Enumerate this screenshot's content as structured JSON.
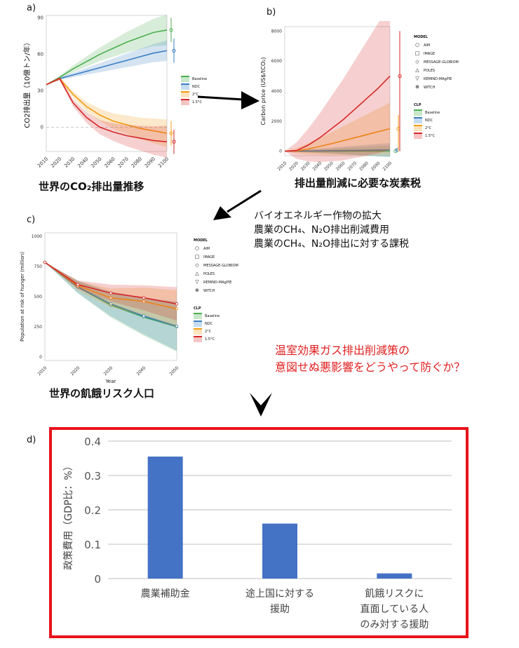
{
  "panel_a": {
    "letter": "a)",
    "caption": "世界のCO₂排出量推移",
    "chart_data": {
      "type": "line",
      "ylabel": "CO2排出量（10億トン/年）",
      "xlabel": "",
      "x": [
        2010,
        2020,
        2030,
        2040,
        2050,
        2060,
        2070,
        2080,
        2090,
        2100
      ],
      "y_ticks": [
        0,
        30,
        60,
        90
      ],
      "ylim": [
        -20,
        92
      ],
      "series": [
        {
          "name": "Baseline",
          "color": "#4caf50",
          "values": [
            35,
            41,
            48,
            54,
            60,
            65,
            70,
            74,
            78,
            80
          ]
        },
        {
          "name": "NDC",
          "color": "#3a7ec2",
          "values": [
            35,
            40,
            43,
            46,
            49,
            52,
            55,
            58,
            61,
            63
          ]
        },
        {
          "name": "2°C",
          "color": "#f39c12",
          "values": [
            35,
            40,
            27,
            17,
            10,
            5,
            2,
            -1,
            -3,
            -5
          ]
        },
        {
          "name": "1.5°C",
          "color": "#d62728",
          "values": [
            35,
            40,
            20,
            8,
            0,
            -4,
            -7,
            -9,
            -11,
            -12
          ]
        }
      ],
      "legend": [
        "Baseline",
        "NDC",
        "2°C",
        "1.5°C"
      ],
      "legend_position": "right"
    }
  },
  "panel_b": {
    "letter": "b)",
    "caption": "排出量削減に必要な炭素税",
    "chart_data": {
      "type": "line",
      "ylabel": "Carbon price (US$/tCO₂)",
      "x": [
        2010,
        2020,
        2030,
        2040,
        2050,
        2060,
        2070,
        2080,
        2090,
        2100
      ],
      "y_ticks": [
        0,
        2000,
        4000,
        6000,
        8000
      ],
      "ylim": [
        -300,
        8300
      ],
      "series": [
        {
          "name": "Baseline",
          "color": "#4caf50",
          "values": [
            0,
            0,
            0,
            0,
            0,
            0,
            0,
            0,
            0,
            0
          ]
        },
        {
          "name": "NDC",
          "color": "#3a7ec2",
          "values": [
            0,
            5,
            15,
            25,
            35,
            45,
            55,
            65,
            75,
            85
          ]
        },
        {
          "name": "2°C",
          "color": "#f39c12",
          "values": [
            0,
            20,
            150,
            320,
            500,
            700,
            900,
            1100,
            1300,
            1500
          ]
        },
        {
          "name": "1.5°C",
          "color": "#d62728",
          "values": [
            0,
            40,
            400,
            900,
            1500,
            2100,
            2800,
            3500,
            4200,
            5000
          ]
        }
      ],
      "legend_model_header": "MODEL",
      "models": [
        "AIM",
        "IMAGE",
        "MESSAGE-GLOBIOM",
        "POLES",
        "REMIND-MAgPIE",
        "WITCH"
      ],
      "model_icons": [
        "○",
        "□",
        "◇",
        "△",
        "▽",
        "⊕"
      ],
      "legend_clp_header": "CLP",
      "clp": [
        "Baseline",
        "NDC",
        "2°C",
        "1.5°C"
      ]
    }
  },
  "panel_c": {
    "letter": "c)",
    "chart_data": {
      "type": "line",
      "xlabel": "Year",
      "ylabel": "Population at risk of hunger (million)",
      "x": [
        2010,
        2020,
        2030,
        2040,
        2050
      ],
      "y_ticks": [
        0,
        250,
        500,
        750,
        1000
      ],
      "ylim": [
        -30,
        1030
      ],
      "series": [
        {
          "name": "Baseline",
          "color": "#4caf50",
          "values": [
            785,
            580,
            430,
            330,
            250
          ]
        },
        {
          "name": "NDC",
          "color": "#3a7ec2",
          "values": [
            785,
            580,
            440,
            340,
            255
          ]
        },
        {
          "name": "2°C",
          "color": "#f39c12",
          "values": [
            785,
            590,
            490,
            460,
            400
          ]
        },
        {
          "name": "1.5°C",
          "color": "#d62728",
          "values": [
            785,
            600,
            530,
            490,
            440
          ]
        }
      ],
      "legend_model_header": "MODEL",
      "models": [
        "AIM",
        "IMAGE",
        "MESSAGE-GLOBIOM",
        "POLES",
        "REMIND-MAgPIE",
        "WITCH"
      ],
      "model_icons": [
        "○",
        "□",
        "◇",
        "△",
        "▽",
        "⊕"
      ],
      "legend_clp_header": "CLP",
      "clp": [
        "Baseline",
        "NDC",
        "2°C",
        "1.5°C"
      ]
    },
    "caption": "世界の飢餓リスク人口"
  },
  "annotation_lines": [
    "バイオエネルギー作物の拡大",
    "農業のCH₄、N₂O排出削減費用",
    "農業のCH₄、N₂O排出に対する課税"
  ],
  "question_lines": [
    "温室効果ガス排出削減策の",
    "意図せぬ悪影響をどうやって防ぐか？"
  ],
  "panel_d": {
    "letter": "d)",
    "chart_data": {
      "type": "bar",
      "ylabel": "政策費用（GDP比：%）",
      "categories": [
        "農業補助金",
        "途上国に対する\n援助",
        "飢餓リスクに\n直面している人\nのみ対する援助"
      ],
      "values": [
        0.355,
        0.16,
        0.015
      ],
      "y_ticks": [
        "0",
        "0.1",
        "0.2",
        "0.3",
        "0.4"
      ],
      "ylim": [
        0,
        0.4
      ],
      "bar_color": "#4472c4",
      "grid": true
    }
  },
  "colors": {
    "baseline": "#4caf50",
    "ndc": "#3a7ec2",
    "deg2": "#f39c12",
    "deg15": "#d62728",
    "highlight_box": "#e8131b"
  }
}
